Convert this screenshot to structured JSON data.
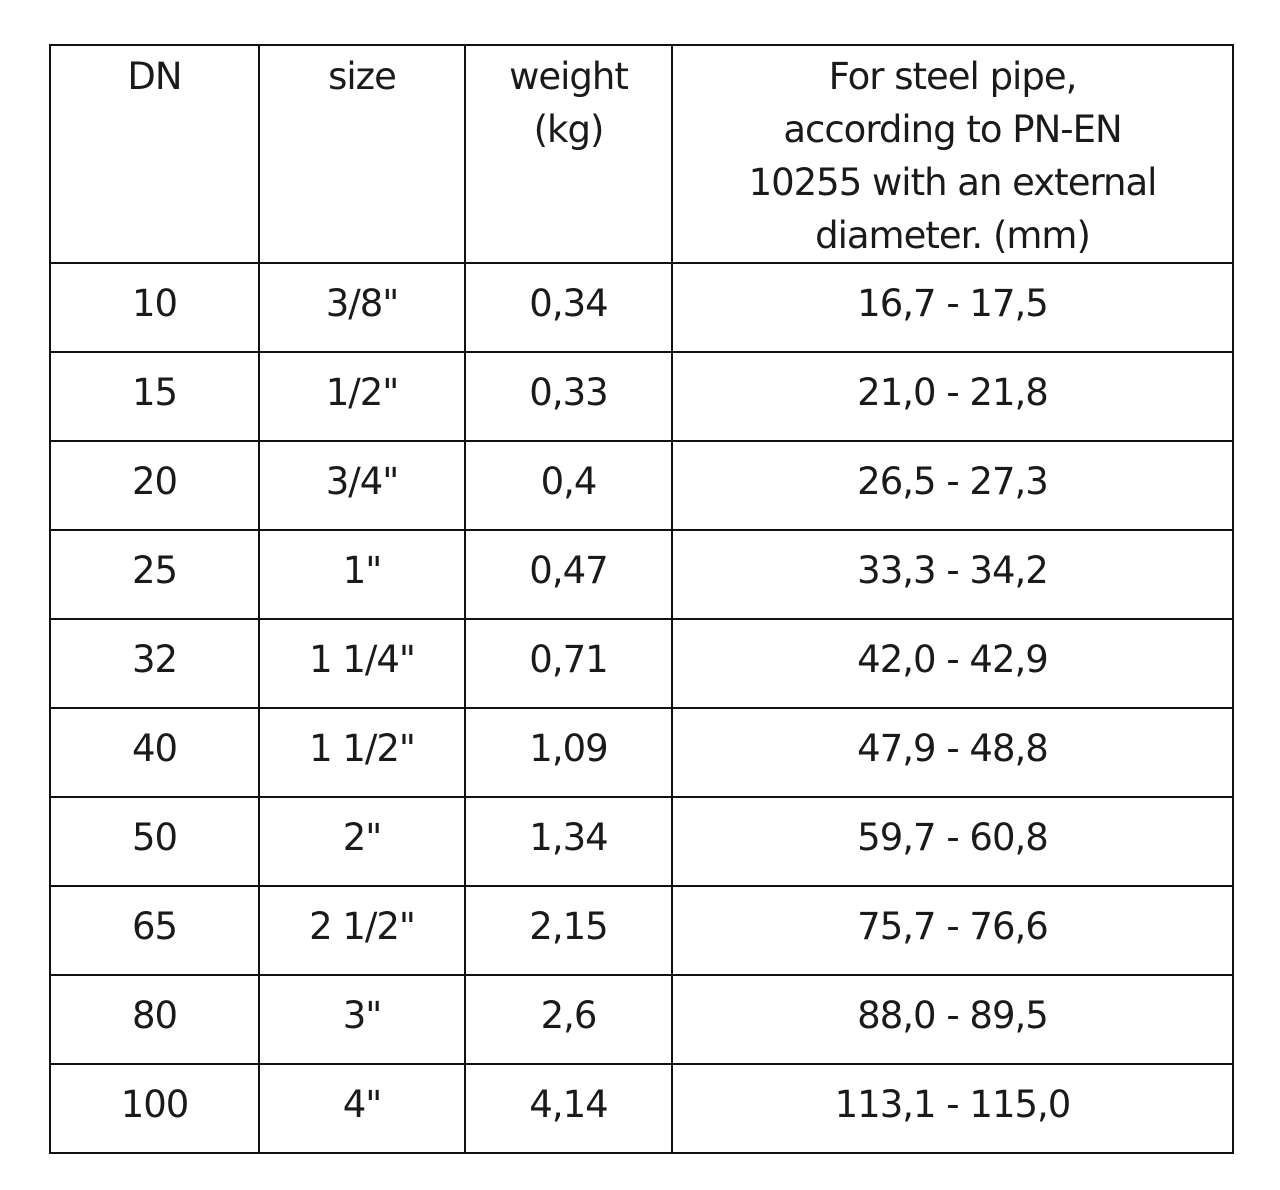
{
  "table": {
    "headers": [
      "DN",
      "size",
      "weight (kg)",
      "For steel pipe, according to PN-EN 10255 with an external diameter. (mm)"
    ],
    "header_lines": {
      "weight": [
        "weight",
        "(kg)"
      ],
      "pipe": [
        "For steel pipe,",
        "according to PN-EN",
        "10255 with an external",
        "diameter. (mm)"
      ]
    },
    "rows": [
      [
        "10",
        "3/8\"",
        "0,34",
        "16,7 - 17,5"
      ],
      [
        "15",
        "1/2\"",
        "0,33",
        "21,0 - 21,8"
      ],
      [
        "20",
        "3/4\"",
        "0,4",
        "26,5 - 27,3"
      ],
      [
        "25",
        "1\"",
        "0,47",
        "33,3 - 34,2"
      ],
      [
        "32",
        "1 1/4\"",
        "0,71",
        "42,0 - 42,9"
      ],
      [
        "40",
        "1 1/2\"",
        "1,09",
        "47,9 - 48,8"
      ],
      [
        "50",
        "2\"",
        "1,34",
        "59,7 - 60,8"
      ],
      [
        "65",
        "2 1/2\"",
        "2,15",
        "75,7 - 76,6"
      ],
      [
        "80",
        "3\"",
        "2,6",
        "88,0 - 89,5"
      ],
      [
        "100",
        "4\"",
        "4,14",
        "113,1 - 115,0"
      ]
    ]
  }
}
